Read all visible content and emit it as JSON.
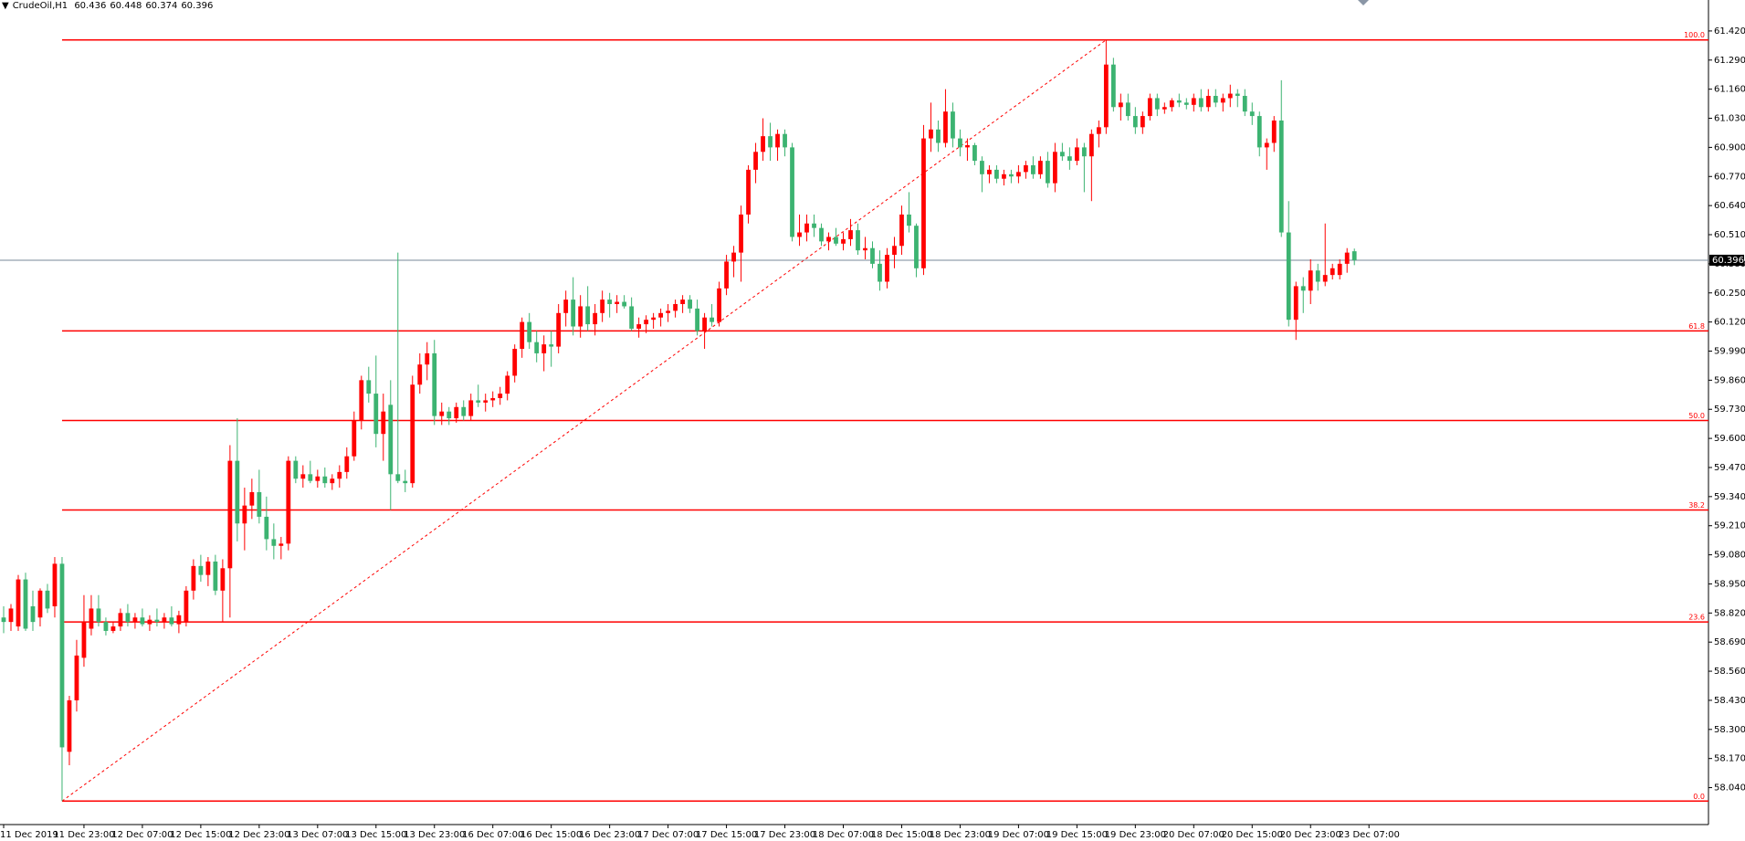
{
  "chart_data": {
    "type": "candlestick",
    "symbol": "CrudeOil,H1",
    "up_color": "#ff0000",
    "down_color": "#3cb371",
    "fib_color": "#ff0000",
    "price_line_color": "#778899",
    "xlim": [
      -0.5,
      233.5
    ],
    "ylim": [
      57.875,
      61.489
    ],
    "yticks": [
      {
        "value": 61.42,
        "label": "61.420"
      },
      {
        "value": 61.29,
        "label": "61.290"
      },
      {
        "value": 61.16,
        "label": "61.160"
      },
      {
        "value": 61.03,
        "label": "61.030"
      },
      {
        "value": 60.9,
        "label": "60.900"
      },
      {
        "value": 60.77,
        "label": "60.770"
      },
      {
        "value": 60.64,
        "label": "60.640"
      },
      {
        "value": 60.51,
        "label": "60.510"
      },
      {
        "value": 60.38,
        "label": "60.380"
      },
      {
        "value": 60.25,
        "label": "60.250"
      },
      {
        "value": 60.12,
        "label": "60.120"
      },
      {
        "value": 59.99,
        "label": "59.990"
      },
      {
        "value": 59.86,
        "label": "59.860"
      },
      {
        "value": 59.73,
        "label": "59.730"
      },
      {
        "value": 59.6,
        "label": "59.600"
      },
      {
        "value": 59.47,
        "label": "59.470"
      },
      {
        "value": 59.34,
        "label": "59.340"
      },
      {
        "value": 59.21,
        "label": "59.210"
      },
      {
        "value": 59.08,
        "label": "59.080"
      },
      {
        "value": 58.95,
        "label": "58.950"
      },
      {
        "value": 58.82,
        "label": "58.820"
      },
      {
        "value": 58.69,
        "label": "58.690"
      },
      {
        "value": 58.56,
        "label": "58.560"
      },
      {
        "value": 58.43,
        "label": "58.430"
      },
      {
        "value": 58.3,
        "label": "58.300"
      },
      {
        "value": 58.17,
        "label": "58.170"
      },
      {
        "value": 58.04,
        "label": "58.040"
      }
    ],
    "xticks": [
      {
        "value": 0,
        "label": "11 Dec 2019"
      },
      {
        "value": 11,
        "label": "11 Dec 23:00"
      },
      {
        "value": 19,
        "label": "12 Dec 07:00"
      },
      {
        "value": 27,
        "label": "12 Dec 15:00"
      },
      {
        "value": 35,
        "label": "12 Dec 23:00"
      },
      {
        "value": 43,
        "label": "13 Dec 07:00"
      },
      {
        "value": 51,
        "label": "13 Dec 15:00"
      },
      {
        "value": 59,
        "label": "13 Dec 23:00"
      },
      {
        "value": 67,
        "label": "16 Dec 07:00"
      },
      {
        "value": 75,
        "label": "16 Dec 15:00"
      },
      {
        "value": 83,
        "label": "16 Dec 23:00"
      },
      {
        "value": 91,
        "label": "17 Dec 07:00"
      },
      {
        "value": 99,
        "label": "17 Dec 15:00"
      },
      {
        "value": 107,
        "label": "17 Dec 23:00"
      },
      {
        "value": 115,
        "label": "18 Dec 07:00"
      },
      {
        "value": 123,
        "label": "18 Dec 15:00"
      },
      {
        "value": 131,
        "label": "18 Dec 23:00"
      },
      {
        "value": 139,
        "label": "19 Dec 07:00"
      },
      {
        "value": 147,
        "label": "19 Dec 15:00"
      },
      {
        "value": 155,
        "label": "19 Dec 23:00"
      },
      {
        "value": 163,
        "label": "20 Dec 07:00"
      },
      {
        "value": 171,
        "label": "20 Dec 15:00"
      },
      {
        "value": 179,
        "label": "20 Dec 23:00"
      },
      {
        "value": 187,
        "label": "23 Dec 07:00"
      }
    ],
    "fibonacci": {
      "anchor_x": [
        8,
        151
      ],
      "levels": [
        {
          "label": "100.0",
          "price": 61.38
        },
        {
          "label": "61.8",
          "price": 60.08
        },
        {
          "label": "50.0",
          "price": 59.68
        },
        {
          "label": "38.2",
          "price": 59.28
        },
        {
          "label": "23.6",
          "price": 58.78
        },
        {
          "label": "0.0",
          "price": 57.98
        }
      ]
    },
    "ohlc": [
      [
        58.8,
        58.85,
        58.73,
        58.78
      ],
      [
        58.78,
        58.86,
        58.74,
        58.84
      ],
      [
        58.76,
        58.99,
        58.74,
        58.97
      ],
      [
        58.97,
        59.0,
        58.74,
        58.75
      ],
      [
        58.85,
        58.92,
        58.74,
        58.78
      ],
      [
        58.8,
        58.93,
        58.76,
        58.92
      ],
      [
        58.92,
        58.95,
        58.82,
        58.84
      ],
      [
        58.85,
        59.07,
        58.8,
        59.04
      ],
      [
        59.04,
        59.07,
        57.98,
        58.22
      ],
      [
        58.2,
        58.45,
        58.14,
        58.43
      ],
      [
        58.43,
        58.7,
        58.38,
        58.63
      ],
      [
        58.62,
        58.9,
        58.58,
        58.78
      ],
      [
        58.75,
        58.9,
        58.72,
        58.84
      ],
      [
        58.84,
        58.9,
        58.76,
        58.78
      ],
      [
        58.78,
        58.8,
        58.72,
        58.74
      ],
      [
        58.74,
        58.78,
        58.73,
        58.76
      ],
      [
        58.76,
        58.84,
        58.74,
        58.82
      ],
      [
        58.82,
        58.86,
        58.76,
        58.78
      ],
      [
        58.78,
        58.82,
        58.75,
        58.8
      ],
      [
        58.8,
        58.84,
        58.76,
        58.77
      ],
      [
        58.77,
        58.81,
        58.74,
        58.79
      ],
      [
        58.79,
        58.84,
        58.76,
        58.78
      ],
      [
        58.78,
        58.82,
        58.75,
        58.8
      ],
      [
        58.8,
        58.85,
        58.76,
        58.77
      ],
      [
        58.77,
        58.83,
        58.73,
        58.81
      ],
      [
        58.78,
        58.94,
        58.76,
        58.92
      ],
      [
        58.92,
        59.06,
        58.88,
        59.03
      ],
      [
        59.03,
        59.08,
        58.96,
        58.99
      ],
      [
        58.99,
        59.07,
        58.94,
        59.05
      ],
      [
        59.05,
        59.08,
        58.9,
        58.92
      ],
      [
        58.92,
        59.06,
        58.78,
        59.02
      ],
      [
        59.02,
        59.57,
        58.8,
        59.5
      ],
      [
        59.5,
        59.69,
        59.14,
        59.22
      ],
      [
        59.22,
        59.38,
        59.1,
        59.3
      ],
      [
        59.3,
        59.42,
        59.24,
        59.36
      ],
      [
        59.36,
        59.46,
        59.22,
        59.25
      ],
      [
        59.25,
        59.34,
        59.1,
        59.15
      ],
      [
        59.15,
        59.22,
        59.06,
        59.12
      ],
      [
        59.12,
        59.16,
        59.06,
        59.13
      ],
      [
        59.13,
        59.52,
        59.1,
        59.5
      ],
      [
        59.5,
        59.52,
        59.4,
        59.42
      ],
      [
        59.42,
        59.48,
        59.38,
        59.44
      ],
      [
        59.44,
        59.5,
        59.4,
        59.41
      ],
      [
        59.41,
        59.46,
        59.38,
        59.43
      ],
      [
        59.43,
        59.47,
        59.38,
        59.4
      ],
      [
        59.4,
        59.44,
        59.37,
        59.42
      ],
      [
        59.42,
        59.48,
        59.38,
        59.45
      ],
      [
        59.45,
        59.56,
        59.42,
        59.52
      ],
      [
        59.52,
        59.72,
        59.5,
        59.68
      ],
      [
        59.68,
        59.88,
        59.64,
        59.86
      ],
      [
        59.86,
        59.92,
        59.76,
        59.8
      ],
      [
        59.8,
        59.97,
        59.56,
        59.62
      ],
      [
        59.62,
        59.8,
        59.5,
        59.72
      ],
      [
        59.75,
        59.86,
        59.28,
        59.44
      ],
      [
        59.44,
        60.43,
        59.4,
        59.41
      ],
      [
        59.41,
        59.46,
        59.36,
        59.4
      ],
      [
        59.4,
        59.88,
        59.38,
        59.84
      ],
      [
        59.84,
        59.98,
        59.8,
        59.93
      ],
      [
        59.93,
        60.03,
        59.86,
        59.98
      ],
      [
        59.98,
        60.04,
        59.66,
        59.7
      ],
      [
        59.7,
        59.76,
        59.66,
        59.72
      ],
      [
        59.72,
        59.74,
        59.66,
        59.69
      ],
      [
        59.69,
        59.76,
        59.67,
        59.74
      ],
      [
        59.74,
        59.77,
        59.68,
        59.7
      ],
      [
        59.7,
        59.8,
        59.68,
        59.77
      ],
      [
        59.77,
        59.84,
        59.74,
        59.76
      ],
      [
        59.76,
        59.8,
        59.72,
        59.77
      ],
      [
        59.77,
        59.81,
        59.74,
        59.78
      ],
      [
        59.78,
        59.83,
        59.75,
        59.8
      ],
      [
        59.8,
        59.9,
        59.77,
        59.88
      ],
      [
        59.88,
        60.02,
        59.85,
        60.0
      ],
      [
        60.0,
        60.14,
        59.96,
        60.12
      ],
      [
        60.12,
        60.16,
        60.0,
        60.03
      ],
      [
        60.03,
        60.08,
        59.94,
        59.98
      ],
      [
        59.98,
        60.06,
        59.9,
        60.02
      ],
      [
        60.02,
        60.08,
        59.92,
        60.01
      ],
      [
        60.01,
        60.2,
        59.98,
        60.16
      ],
      [
        60.16,
        60.26,
        60.1,
        60.22
      ],
      [
        60.22,
        60.32,
        60.06,
        60.1
      ],
      [
        60.1,
        60.24,
        60.05,
        60.19
      ],
      [
        60.19,
        60.28,
        60.08,
        60.11
      ],
      [
        60.11,
        60.2,
        60.06,
        60.16
      ],
      [
        60.16,
        60.26,
        60.12,
        60.22
      ],
      [
        60.22,
        60.25,
        60.14,
        60.2
      ],
      [
        60.2,
        60.24,
        60.16,
        60.21
      ],
      [
        60.21,
        60.24,
        60.18,
        60.19
      ],
      [
        60.19,
        60.23,
        60.08,
        60.09
      ],
      [
        60.09,
        60.14,
        60.05,
        60.11
      ],
      [
        60.11,
        60.15,
        60.07,
        60.13
      ],
      [
        60.13,
        60.16,
        60.09,
        60.14
      ],
      [
        60.14,
        60.18,
        60.1,
        60.16
      ],
      [
        60.16,
        60.2,
        60.12,
        60.17
      ],
      [
        60.17,
        60.22,
        60.14,
        60.2
      ],
      [
        60.2,
        60.24,
        60.16,
        60.22
      ],
      [
        60.22,
        60.24,
        60.16,
        60.18
      ],
      [
        60.18,
        60.22,
        60.06,
        60.08
      ],
      [
        60.08,
        60.16,
        60.0,
        60.14
      ],
      [
        60.14,
        60.2,
        60.1,
        60.12
      ],
      [
        60.12,
        60.3,
        60.1,
        60.27
      ],
      [
        60.27,
        60.42,
        60.24,
        60.39
      ],
      [
        60.39,
        60.46,
        60.32,
        60.43
      ],
      [
        60.43,
        60.64,
        60.3,
        60.6
      ],
      [
        60.6,
        60.82,
        60.56,
        60.8
      ],
      [
        60.8,
        60.92,
        60.74,
        60.88
      ],
      [
        60.88,
        61.03,
        60.84,
        60.95
      ],
      [
        60.95,
        61.01,
        60.84,
        60.9
      ],
      [
        60.9,
        60.98,
        60.84,
        60.96
      ],
      [
        60.96,
        60.98,
        60.86,
        60.9
      ],
      [
        60.9,
        60.92,
        60.48,
        60.5
      ],
      [
        60.5,
        60.6,
        60.46,
        60.52
      ],
      [
        60.52,
        60.6,
        60.48,
        60.56
      ],
      [
        60.56,
        60.6,
        60.5,
        60.54
      ],
      [
        60.54,
        60.56,
        60.46,
        60.48
      ],
      [
        60.48,
        60.52,
        60.44,
        60.5
      ],
      [
        60.5,
        60.54,
        60.46,
        60.47
      ],
      [
        60.47,
        60.52,
        60.44,
        60.49
      ],
      [
        60.49,
        60.58,
        60.46,
        60.53
      ],
      [
        60.53,
        60.56,
        60.42,
        60.44
      ],
      [
        60.44,
        60.5,
        60.4,
        60.45
      ],
      [
        60.45,
        60.48,
        60.36,
        60.38
      ],
      [
        60.38,
        60.44,
        60.26,
        60.3
      ],
      [
        60.3,
        60.45,
        60.27,
        60.42
      ],
      [
        60.42,
        60.5,
        60.36,
        60.46
      ],
      [
        60.46,
        60.64,
        60.42,
        60.6
      ],
      [
        60.6,
        60.7,
        60.52,
        60.55
      ],
      [
        60.55,
        60.56,
        60.32,
        60.36
      ],
      [
        60.36,
        61.0,
        60.33,
        60.94
      ],
      [
        60.94,
        61.1,
        60.88,
        60.98
      ],
      [
        60.98,
        61.02,
        60.88,
        60.92
      ],
      [
        60.92,
        61.16,
        60.9,
        61.06
      ],
      [
        61.06,
        61.1,
        60.9,
        60.94
      ],
      [
        60.94,
        60.98,
        60.86,
        60.9
      ],
      [
        60.9,
        60.94,
        60.84,
        60.91
      ],
      [
        60.91,
        60.92,
        60.82,
        60.84
      ],
      [
        60.84,
        60.86,
        60.7,
        60.78
      ],
      [
        60.78,
        60.82,
        60.74,
        60.8
      ],
      [
        60.8,
        60.82,
        60.74,
        60.76
      ],
      [
        60.76,
        60.8,
        60.73,
        60.78
      ],
      [
        60.78,
        60.8,
        60.74,
        60.77
      ],
      [
        60.77,
        60.82,
        60.74,
        60.79
      ],
      [
        60.79,
        60.84,
        60.76,
        60.82
      ],
      [
        60.82,
        60.86,
        60.76,
        60.78
      ],
      [
        60.78,
        60.86,
        60.76,
        60.84
      ],
      [
        60.84,
        60.88,
        60.72,
        60.74
      ],
      [
        60.74,
        60.92,
        60.7,
        60.88
      ],
      [
        60.88,
        60.92,
        60.84,
        60.86
      ],
      [
        60.86,
        60.9,
        60.8,
        60.84
      ],
      [
        60.84,
        60.94,
        60.82,
        60.9
      ],
      [
        60.9,
        60.92,
        60.7,
        60.86
      ],
      [
        60.86,
        60.98,
        60.66,
        60.96
      ],
      [
        60.96,
        61.02,
        60.9,
        60.99
      ],
      [
        60.99,
        61.38,
        60.96,
        61.27
      ],
      [
        61.27,
        61.3,
        61.06,
        61.08
      ],
      [
        61.08,
        61.14,
        61.02,
        61.1
      ],
      [
        61.1,
        61.14,
        61.02,
        61.04
      ],
      [
        61.04,
        61.08,
        60.96,
        60.99
      ],
      [
        60.99,
        61.06,
        60.96,
        61.04
      ],
      [
        61.04,
        61.14,
        61.02,
        61.12
      ],
      [
        61.12,
        61.14,
        61.04,
        61.07
      ],
      [
        61.07,
        61.1,
        61.05,
        61.08
      ],
      [
        61.08,
        61.12,
        61.06,
        61.11
      ],
      [
        61.11,
        61.14,
        61.08,
        61.1
      ],
      [
        61.1,
        61.12,
        61.07,
        61.09
      ],
      [
        61.09,
        61.14,
        61.06,
        61.12
      ],
      [
        61.12,
        61.16,
        61.06,
        61.08
      ],
      [
        61.08,
        61.16,
        61.06,
        61.13
      ],
      [
        61.13,
        61.16,
        61.08,
        61.1
      ],
      [
        61.1,
        61.14,
        61.06,
        61.12
      ],
      [
        61.12,
        61.18,
        61.08,
        61.14
      ],
      [
        61.14,
        61.16,
        61.08,
        61.13
      ],
      [
        61.13,
        61.16,
        61.04,
        61.06
      ],
      [
        61.06,
        61.1,
        61.0,
        61.04
      ],
      [
        61.04,
        61.06,
        60.86,
        60.9
      ],
      [
        60.9,
        60.94,
        60.8,
        60.92
      ],
      [
        60.92,
        61.04,
        60.88,
        61.02
      ],
      [
        61.02,
        61.2,
        60.5,
        60.52
      ],
      [
        60.52,
        60.66,
        60.1,
        60.13
      ],
      [
        60.13,
        60.3,
        60.04,
        60.28
      ],
      [
        60.28,
        60.32,
        60.16,
        60.26
      ],
      [
        60.26,
        60.4,
        60.2,
        60.35
      ],
      [
        60.35,
        60.38,
        60.26,
        60.3
      ],
      [
        60.3,
        60.56,
        60.28,
        60.33
      ],
      [
        60.33,
        60.38,
        60.31,
        60.36
      ],
      [
        60.33,
        60.4,
        60.31,
        60.38
      ],
      [
        60.38,
        60.45,
        60.34,
        60.43
      ],
      [
        60.436,
        60.448,
        60.374,
        60.396
      ]
    ]
  }
}
